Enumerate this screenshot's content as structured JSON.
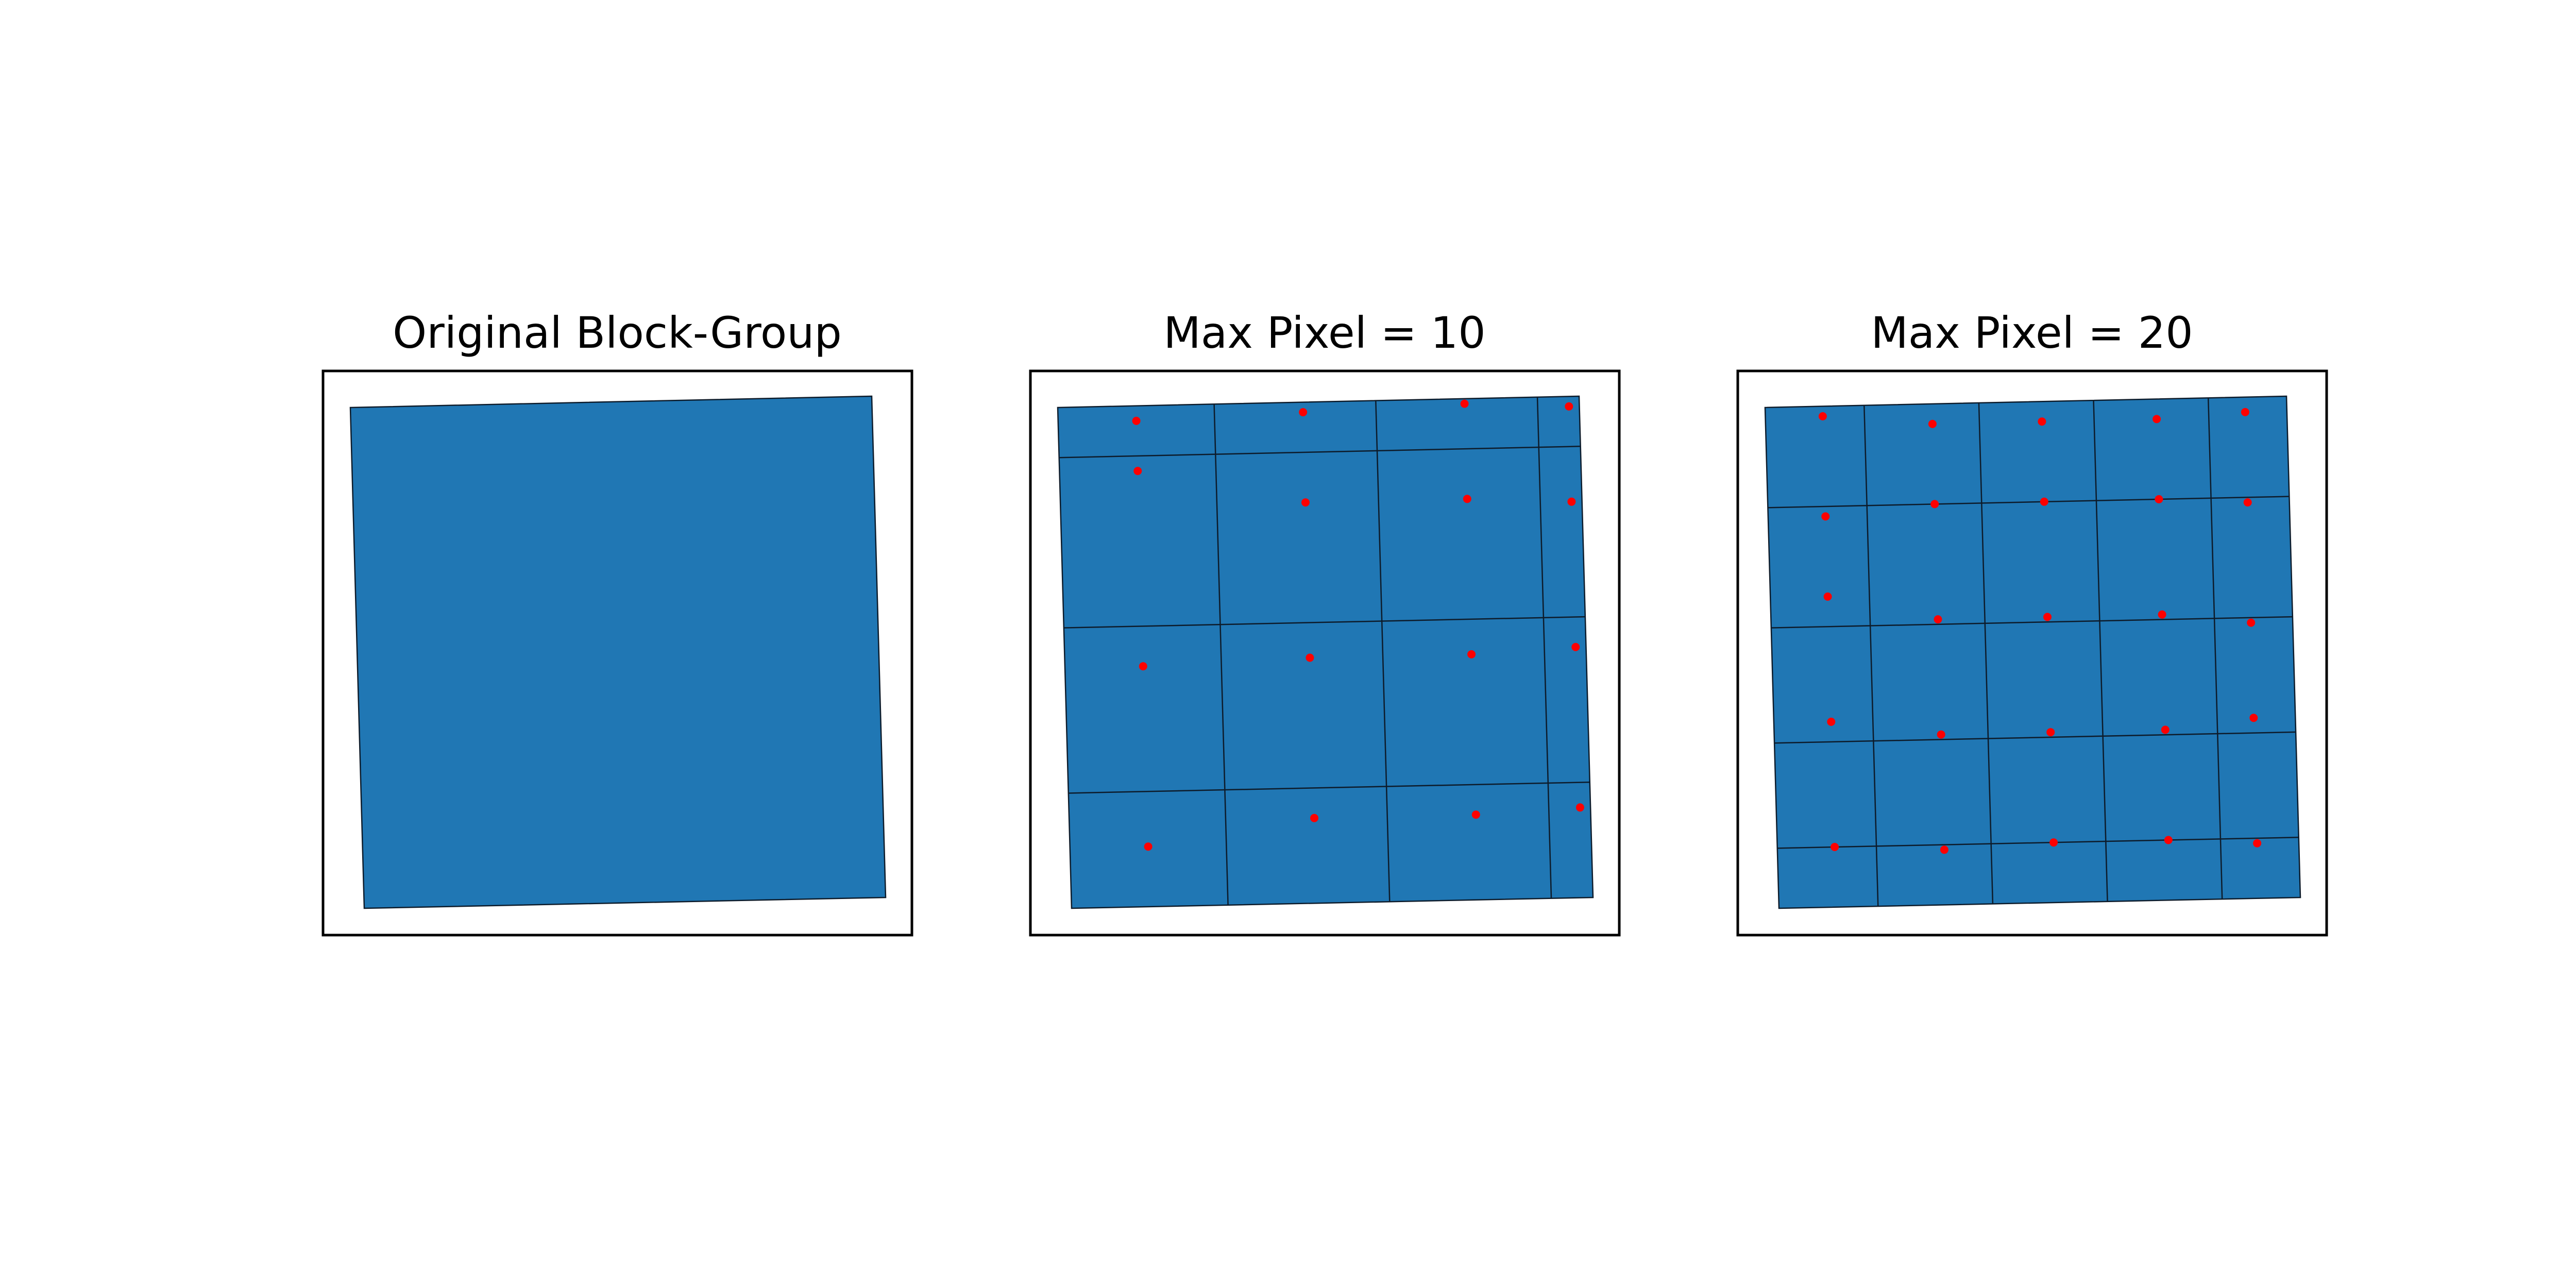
{
  "colors": {
    "fill": "#2077b4",
    "edge": "#0d1b2a",
    "point": "#ff0000",
    "frame": "#000000",
    "background": "#ffffff"
  },
  "panels": [
    {
      "title": "Original Block-Group",
      "max_pixel": null,
      "grid": {
        "columns": 1,
        "rows": 1
      },
      "points": []
    },
    {
      "title": "Max Pixel = 10",
      "max_pixel": 10,
      "grid": {
        "columns": 4,
        "rows": 4
      },
      "points": [
        [
          0.15,
          0.97
        ],
        [
          0.47,
          0.98
        ],
        [
          0.78,
          0.99
        ],
        [
          0.98,
          0.98
        ],
        [
          0.15,
          0.87
        ],
        [
          0.47,
          0.8
        ],
        [
          0.78,
          0.8
        ],
        [
          0.98,
          0.79
        ],
        [
          0.15,
          0.48
        ],
        [
          0.47,
          0.49
        ],
        [
          0.78,
          0.49
        ],
        [
          0.98,
          0.5
        ],
        [
          0.15,
          0.12
        ],
        [
          0.47,
          0.17
        ],
        [
          0.78,
          0.17
        ],
        [
          0.98,
          0.18
        ]
      ]
    },
    {
      "title": "Max Pixel = 20",
      "max_pixel": 20,
      "grid": {
        "columns": 5,
        "rows": 5
      },
      "points": [
        [
          0.11,
          0.98
        ],
        [
          0.32,
          0.96
        ],
        [
          0.53,
          0.96
        ],
        [
          0.75,
          0.96
        ],
        [
          0.92,
          0.97
        ],
        [
          0.11,
          0.78
        ],
        [
          0.32,
          0.8
        ],
        [
          0.53,
          0.8
        ],
        [
          0.75,
          0.8
        ],
        [
          0.92,
          0.79
        ],
        [
          0.11,
          0.62
        ],
        [
          0.32,
          0.57
        ],
        [
          0.53,
          0.57
        ],
        [
          0.75,
          0.57
        ],
        [
          0.92,
          0.55
        ],
        [
          0.11,
          0.37
        ],
        [
          0.32,
          0.34
        ],
        [
          0.53,
          0.34
        ],
        [
          0.75,
          0.34
        ],
        [
          0.92,
          0.36
        ],
        [
          0.11,
          0.12
        ],
        [
          0.32,
          0.11
        ],
        [
          0.53,
          0.12
        ],
        [
          0.75,
          0.12
        ],
        [
          0.92,
          0.11
        ]
      ]
    }
  ]
}
